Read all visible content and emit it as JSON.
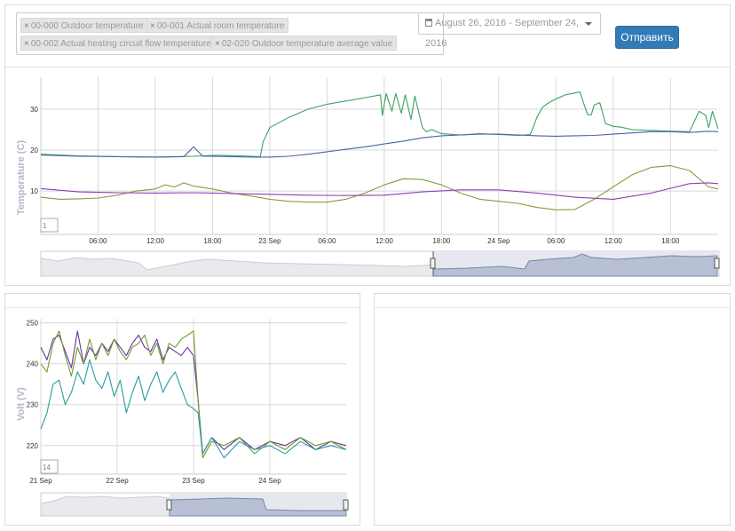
{
  "filters": {
    "tags": [
      {
        "label": "00-000 Outdoor temperature"
      },
      {
        "label": "00-001 Actual room temperature"
      },
      {
        "label": "00-002 Actual heating circuit flow temperature"
      },
      {
        "label": "02-020 Outdoor temperature average value"
      }
    ],
    "date_range": "August 26, 2016 - September 24, 2016",
    "submit_label": "Отправить",
    "calendar_icon": "calendar-icon",
    "remove_icon": "close-icon"
  },
  "chart_data": [
    {
      "type": "line",
      "title": "",
      "ylabel": "Temperature (C)",
      "xlabel": "",
      "ylim": [
        -0.6,
        37.8
      ],
      "yticks": [
        "10",
        "20",
        "30"
      ],
      "xlim": [
        0,
        71
      ],
      "x_ticks": [
        {
          "x": 6,
          "label": "06:00"
        },
        {
          "x": 12,
          "label": "12:00"
        },
        {
          "x": 18,
          "label": "18:00"
        },
        {
          "x": 24,
          "label": "23 Sep"
        },
        {
          "x": 30,
          "label": "06:00"
        },
        {
          "x": 36,
          "label": "12:00"
        },
        {
          "x": 42,
          "label": "18:00"
        },
        {
          "x": 48,
          "label": "24 Sep"
        },
        {
          "x": 54,
          "label": "06:00"
        },
        {
          "x": 60,
          "label": "12:00"
        },
        {
          "x": 66,
          "label": "18:00"
        }
      ],
      "grid": true,
      "range_label": "1",
      "colors": {
        "green": "#3aa35f",
        "blue": "#4a63a8",
        "olive": "#8a9a3a",
        "purple": "#8c3fb5"
      },
      "series": [
        {
          "color": "green",
          "x": [
            0,
            4,
            8,
            12,
            14,
            16,
            17,
            18,
            19,
            21,
            22,
            23,
            23.3,
            24,
            26,
            28,
            30,
            32,
            34,
            35.6,
            35.8,
            36.2,
            36.8,
            37.2,
            37.8,
            38.2,
            38.8,
            39.2,
            40.0,
            40.4,
            41,
            42,
            44,
            46,
            48,
            50,
            51.3,
            51.6,
            52,
            52.6,
            53.2,
            54,
            55,
            56.5,
            57.3,
            57.7,
            58,
            58.6,
            59.2,
            60,
            60.8,
            62,
            64,
            66,
            68,
            69,
            69.7,
            70,
            70.4,
            71
          ],
          "y": [
            19.0,
            18.6,
            18.4,
            18.3,
            18.4,
            18.5,
            18.6,
            18.7,
            18.7,
            18.6,
            18.5,
            18.4,
            22,
            25.5,
            28,
            30,
            31.2,
            32,
            32.8,
            33.5,
            28.5,
            33.8,
            29.5,
            33.8,
            29,
            33.5,
            27.5,
            33.2,
            25.5,
            24.5,
            25,
            24,
            23.7,
            24,
            23.8,
            23.6,
            23.8,
            25.5,
            28,
            30.5,
            31.5,
            32.5,
            33.5,
            34.2,
            28.7,
            28.6,
            31,
            31.6,
            26.5,
            25.8,
            25.6,
            25,
            24.8,
            24.6,
            24.5,
            29.5,
            28.5,
            25.5,
            29.5,
            25.2
          ]
        },
        {
          "color": "blue",
          "x": [
            0,
            4,
            8,
            12,
            15,
            16,
            17,
            18,
            20,
            22,
            24,
            26,
            28,
            30,
            32,
            34,
            36,
            38,
            40,
            42,
            44,
            46,
            48,
            50,
            52,
            54,
            56,
            58,
            60,
            62,
            64,
            66,
            68,
            70,
            71
          ],
          "y": [
            18.8,
            18.5,
            18.4,
            18.3,
            18.4,
            20.8,
            18.5,
            18.5,
            18.4,
            18.3,
            18.3,
            18.5,
            19,
            19.6,
            20.2,
            20.8,
            21.5,
            22.2,
            23,
            23.5,
            23.7,
            23.9,
            23.9,
            23.7,
            23.5,
            23.4,
            23.5,
            23.6,
            23.9,
            24.2,
            24.5,
            24.5,
            24.3,
            24.6,
            24.5
          ]
        },
        {
          "color": "olive",
          "x": [
            0,
            2,
            4,
            6,
            8,
            10,
            12,
            13,
            14,
            15,
            16,
            18,
            20,
            22,
            24,
            26,
            28,
            30,
            32,
            34,
            36,
            38,
            40,
            42,
            44,
            46,
            48,
            50,
            52,
            54,
            56,
            58,
            60,
            62,
            64,
            66,
            68,
            70,
            71
          ],
          "y": [
            8.5,
            8.0,
            8.1,
            8.3,
            9.0,
            10.0,
            10.5,
            11.5,
            11.0,
            12.0,
            11.2,
            10.5,
            9.5,
            8.8,
            8.0,
            7.5,
            7.3,
            7.3,
            8.0,
            9.5,
            11.5,
            13.0,
            12.8,
            11.5,
            9.5,
            8.0,
            7.5,
            7.0,
            6.0,
            5.4,
            5.5,
            8.0,
            11.0,
            14.0,
            15.8,
            16.2,
            15.0,
            11.0,
            10.5
          ]
        },
        {
          "color": "purple",
          "x": [
            0,
            4,
            8,
            12,
            16,
            18,
            20,
            22,
            24,
            28,
            32,
            36,
            40,
            44,
            48,
            52,
            56,
            60,
            64,
            68,
            70,
            71
          ],
          "y": [
            10.6,
            9.8,
            9.6,
            9.5,
            9.6,
            9.5,
            9.4,
            9.3,
            9.2,
            9.0,
            8.9,
            9.0,
            9.8,
            10.3,
            10.3,
            9.5,
            8.5,
            8.0,
            9.5,
            11.8,
            12.0,
            11.8
          ]
        }
      ]
    },
    {
      "type": "line",
      "title": "",
      "ylabel": "Volt (V)",
      "xlabel": "",
      "ylim": [
        213,
        251
      ],
      "yticks": [
        "220",
        "230",
        "240",
        "250"
      ],
      "xlim": [
        0,
        100
      ],
      "x_ticks": [
        {
          "x": 0,
          "label": "21 Sep"
        },
        {
          "x": 25,
          "label": "22 Sep"
        },
        {
          "x": 50,
          "label": "23 Sep"
        },
        {
          "x": 75,
          "label": "24 Sep"
        }
      ],
      "grid": true,
      "range_label": "14",
      "colors": {
        "purple": "#6a2fa0",
        "olive": "#6f9a2a",
        "teal": "#2a9aa0"
      },
      "series": [
        {
          "color": "purple",
          "x": [
            0,
            2,
            4,
            6,
            8,
            10,
            12,
            14,
            16,
            18,
            20,
            22,
            24,
            26,
            28,
            30,
            32,
            34,
            36,
            38,
            40,
            42,
            44,
            46,
            48,
            50,
            51.5,
            53,
            56,
            60,
            65,
            70,
            75,
            80,
            85,
            90,
            95,
            100
          ],
          "y": [
            244,
            241,
            246,
            247,
            243,
            239,
            248,
            240,
            244,
            242,
            245,
            243,
            246,
            244,
            242,
            245,
            247,
            244,
            243,
            246,
            241,
            244,
            243,
            242,
            244,
            242,
            231,
            218,
            222,
            219,
            222,
            219,
            221,
            220,
            222,
            219,
            221,
            220
          ]
        },
        {
          "color": "olive",
          "x": [
            0,
            2,
            4,
            6,
            8,
            10,
            12,
            14,
            16,
            18,
            20,
            22,
            24,
            26,
            28,
            30,
            32,
            34,
            36,
            38,
            40,
            42,
            44,
            46,
            48,
            50,
            51.5,
            53,
            56,
            60,
            65,
            70,
            75,
            80,
            85,
            90,
            95,
            100
          ],
          "y": [
            240,
            238,
            245,
            248,
            242,
            237,
            244,
            240,
            246,
            241,
            245,
            242,
            246,
            243,
            241,
            244,
            245,
            247,
            242,
            245,
            240,
            245,
            244,
            246,
            247,
            248,
            231,
            217,
            221,
            220,
            222,
            218,
            221,
            219,
            222,
            220,
            221,
            219
          ]
        },
        {
          "color": "teal",
          "x": [
            0,
            2,
            4,
            6,
            8,
            10,
            12,
            14,
            16,
            18,
            20,
            22,
            24,
            26,
            28,
            30,
            32,
            34,
            36,
            38,
            40,
            42,
            44,
            46,
            48,
            50,
            51.5,
            53,
            56,
            60,
            65,
            70,
            75,
            80,
            85,
            90,
            95,
            100
          ],
          "y": [
            224,
            228,
            235,
            236,
            230,
            233,
            238,
            235,
            241,
            236,
            234,
            238,
            232,
            236,
            228,
            233,
            237,
            231,
            235,
            238,
            233,
            236,
            238,
            234,
            230,
            229,
            228,
            218,
            222,
            217,
            221,
            219,
            220,
            218,
            221,
            219,
            220,
            219
          ]
        }
      ]
    }
  ]
}
